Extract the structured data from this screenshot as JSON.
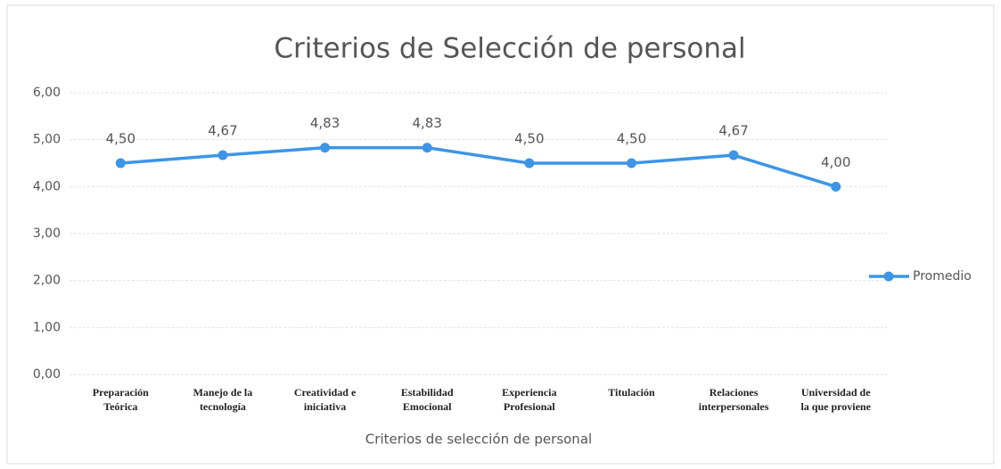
{
  "chart_data": {
    "type": "line",
    "title": "Criterios de Selección de personal",
    "x_label": "Criterios de selección de personal",
    "categories": [
      "Preparación\nTeórica",
      "Manejo de la\ntecnología",
      "Creatividad e\niniciativa",
      "Estabilidad\nEmocional",
      "Experiencia\nProfesional",
      "Titulación",
      "Relaciones\ninterpersonales",
      "Universidad de\nla que proviene"
    ],
    "series": [
      {
        "name": "Promedio",
        "color": "#3d95e6",
        "values": [
          4.5,
          4.67,
          4.83,
          4.83,
          4.5,
          4.5,
          4.67,
          4.0
        ],
        "value_labels": [
          "4,50",
          "4,67",
          "4,83",
          "4,83",
          "4,50",
          "4,50",
          "4,67",
          "4,00"
        ]
      }
    ],
    "ylim": [
      0,
      6
    ],
    "yticks": [
      {
        "value": 0,
        "label": "0,00"
      },
      {
        "value": 1,
        "label": "1,00"
      },
      {
        "value": 2,
        "label": "2,00"
      },
      {
        "value": 3,
        "label": "3,00"
      },
      {
        "value": 4,
        "label": "4,00"
      },
      {
        "value": 5,
        "label": "5,00"
      },
      {
        "value": 6,
        "label": "6,00"
      }
    ],
    "grid": true,
    "legend": "right"
  }
}
